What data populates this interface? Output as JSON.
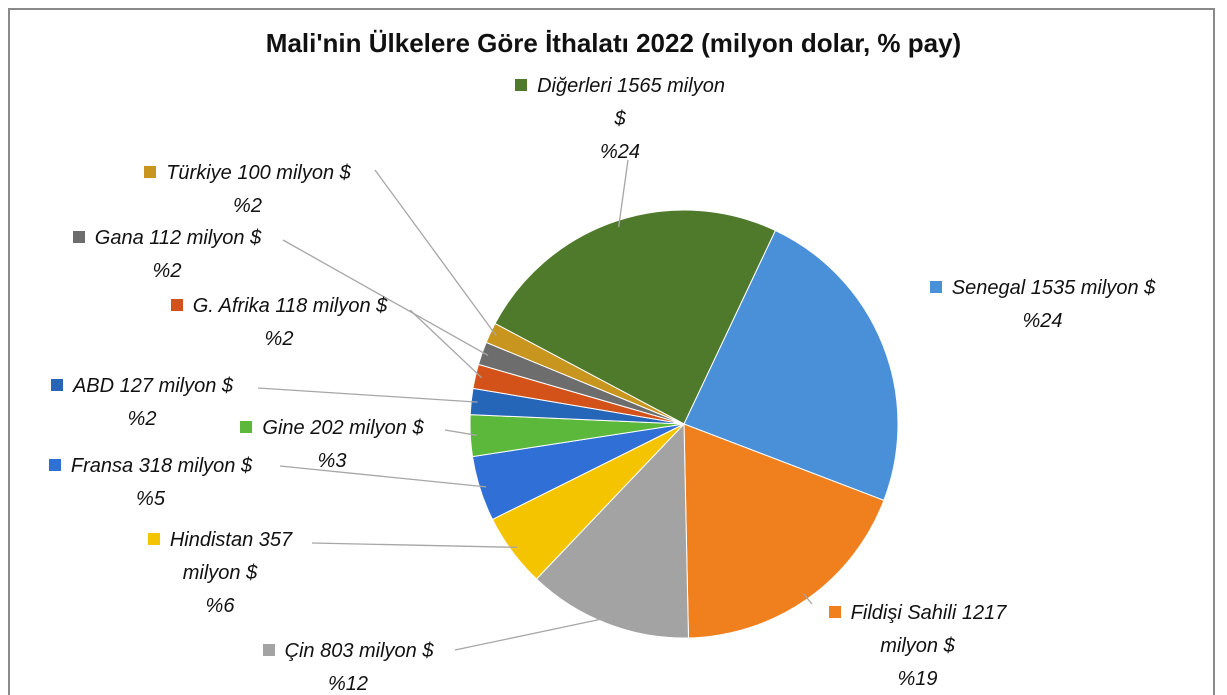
{
  "chart_data": {
    "type": "pie",
    "title": "Mali'nin Ülkelere Göre İthalatı 2022 (milyon dolar, % pay)",
    "categories": [
      "Diğerleri",
      "Senegal",
      "Fildişi Sahili",
      "Çin",
      "Hindistan",
      "Fransa",
      "Gine",
      "ABD",
      "G. Afrika",
      "Gana",
      "Türkiye"
    ],
    "values": [
      1565,
      1535,
      1217,
      803,
      357,
      318,
      202,
      127,
      118,
      112,
      100
    ],
    "value_labels": [
      "1565 milyon $",
      "1535 milyon $",
      "1217 milyon $",
      "803 milyon $",
      "357 milyon $",
      "318 milyon $",
      "202 milyon $",
      "127 milyon $",
      "118 milyon $",
      "112 milyon $",
      "100 milyon $"
    ],
    "shares": [
      24,
      24,
      19,
      12,
      6,
      5,
      3,
      2,
      2,
      2,
      2
    ],
    "share_labels": [
      "%24",
      "%24",
      "%19",
      "%12",
      "%6",
      "%5",
      "%3",
      "%2",
      "%2",
      "%2",
      "%2"
    ],
    "colors": [
      "#4f7a2b",
      "#4a90d9",
      "#f07f1e",
      "#a3a3a3",
      "#f5c400",
      "#2f6fd6",
      "#5cb83a",
      "#2566b8",
      "#d2521a",
      "#6d6d6d",
      "#c8961e"
    ]
  }
}
